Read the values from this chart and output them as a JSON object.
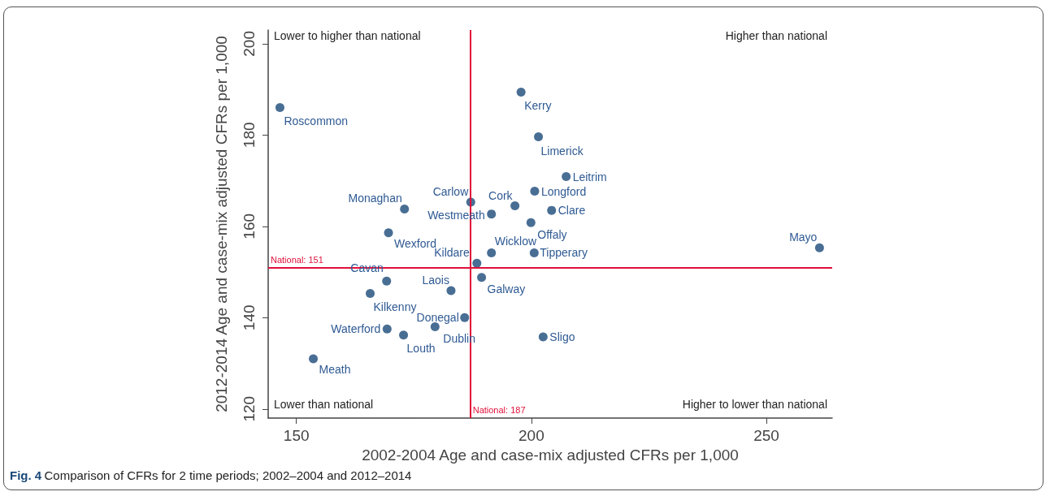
{
  "chart_data": {
    "type": "scatter",
    "xlabel": "2002-2004 Age and case-mix adjusted CFRs per 1,000",
    "ylabel": "2012-2014 Age and case-mix adjusted CFRs per 1,000",
    "x": [
      146.5,
      197.8,
      201.5,
      207.4,
      200.7,
      196.5,
      204.3,
      191.5,
      187.1,
      199.9,
      173.0,
      261.3,
      191.5,
      200.6,
      188.4,
      189.4,
      185.8,
      202.5,
      169.6,
      169.2,
      165.7,
      182.9,
      169.3,
      172.8,
      179.5,
      153.6
    ],
    "series": [
      {
        "color": "#1b4a79",
        "values": [
          186.0,
          189.4,
          179.6,
          170.9,
          167.7,
          164.5,
          163.5,
          162.7,
          165.3,
          160.8,
          163.8,
          155.3,
          154.2,
          154.2,
          151.9,
          148.8,
          140.0,
          135.8,
          158.6,
          148.0,
          145.3,
          145.9,
          137.5,
          136.2,
          138.0,
          131.0
        ]
      }
    ],
    "xlim": [
      144,
      264
    ],
    "xticks": [
      150,
      200,
      250
    ],
    "ylim": [
      118,
      203
    ],
    "yticks": [
      120,
      140,
      160,
      180,
      200
    ],
    "grid": false,
    "marker": "circle",
    "ref_lines": [
      {
        "axis": "y",
        "value": 151,
        "label": "National: 151",
        "color": "#e0103a"
      },
      {
        "axis": "x",
        "value": 187,
        "label": "National: 187",
        "color": "#e0103a"
      }
    ],
    "annotations": [
      {
        "text": "Roscommon",
        "x": 146.5,
        "y": 186.0
      },
      {
        "text": "Kerry",
        "x": 197.8,
        "y": 189.4
      },
      {
        "text": "Limerick",
        "x": 201.5,
        "y": 179.6
      },
      {
        "text": "Leitrim",
        "x": 207.4,
        "y": 170.9
      },
      {
        "text": "Longford",
        "x": 200.7,
        "y": 167.7
      },
      {
        "text": "Cork",
        "x": 196.5,
        "y": 164.5
      },
      {
        "text": "Clare",
        "x": 204.3,
        "y": 163.5
      },
      {
        "text": "Westmeath",
        "x": 191.5,
        "y": 162.7
      },
      {
        "text": "Carlow",
        "x": 187.1,
        "y": 165.3
      },
      {
        "text": "Offaly",
        "x": 199.9,
        "y": 160.8
      },
      {
        "text": "Monaghan",
        "x": 173.0,
        "y": 163.8
      },
      {
        "text": "Mayo",
        "x": 261.3,
        "y": 155.3
      },
      {
        "text": "Wicklow",
        "x": 191.5,
        "y": 154.2
      },
      {
        "text": "Tipperary",
        "x": 200.6,
        "y": 154.2
      },
      {
        "text": "Kildare",
        "x": 188.4,
        "y": 151.9
      },
      {
        "text": "Galway",
        "x": 189.4,
        "y": 148.8
      },
      {
        "text": "Donegal",
        "x": 185.8,
        "y": 140.0
      },
      {
        "text": "Sligo",
        "x": 202.5,
        "y": 135.8
      },
      {
        "text": "Wexford",
        "x": 169.6,
        "y": 158.6
      },
      {
        "text": "Cavan",
        "x": 169.2,
        "y": 148.0
      },
      {
        "text": "Kilkenny",
        "x": 165.7,
        "y": 145.3
      },
      {
        "text": "Laois",
        "x": 182.9,
        "y": 145.9
      },
      {
        "text": "Waterford",
        "x": 169.3,
        "y": 137.5
      },
      {
        "text": "Louth",
        "x": 172.8,
        "y": 136.2
      },
      {
        "text": "Dublin",
        "x": 179.5,
        "y": 138.0
      },
      {
        "text": "Meath",
        "x": 153.6,
        "y": 131.0
      },
      "Lower to higher than national",
      "Higher than national",
      "Lower than national",
      "Higher to lower than national",
      "Fig. 4 Comparison of CFRs for 2 time periods; 2002–2004 and 2012–2014"
    ]
  }
}
